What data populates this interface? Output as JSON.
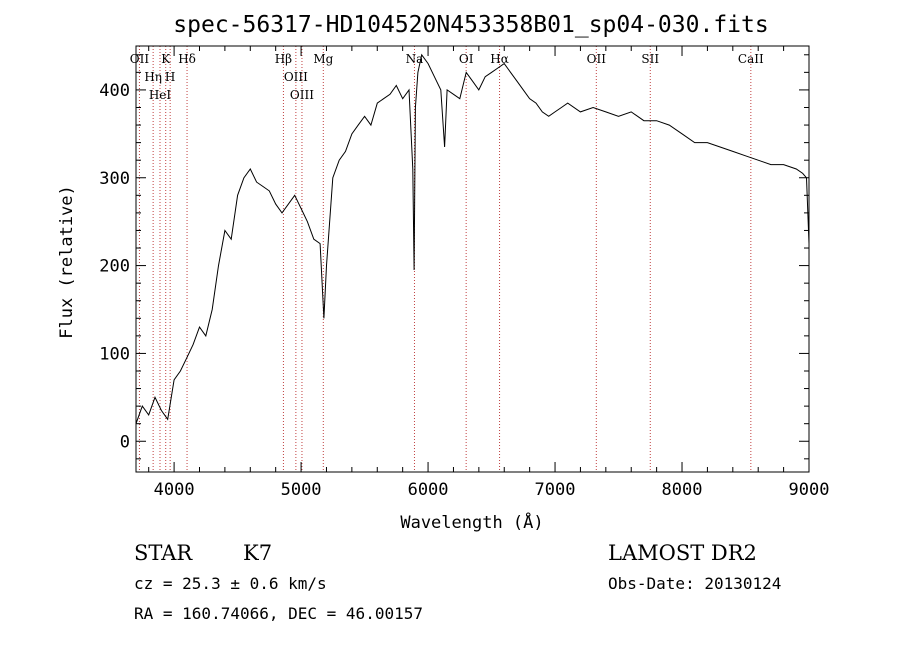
{
  "chart_data": {
    "type": "line",
    "title": "spec-56317-HD104520N453358B01_sp04-030.fits",
    "xlabel": "Wavelength (Å)",
    "ylabel": "Flux (relative)",
    "xlim": [
      3700,
      9000
    ],
    "ylim": [
      -35,
      450
    ],
    "xticks": [
      4000,
      5000,
      6000,
      7000,
      8000,
      9000
    ],
    "yticks": [
      0,
      100,
      200,
      300,
      400
    ],
    "grid": false,
    "series": [
      {
        "color": "#000000",
        "x": [
          3700,
          3750,
          3800,
          3850,
          3900,
          3950,
          4000,
          4050,
          4100,
          4150,
          4200,
          4250,
          4300,
          4350,
          4400,
          4450,
          4500,
          4550,
          4600,
          4650,
          4700,
          4750,
          4800,
          4850,
          4900,
          4950,
          5000,
          5050,
          5100,
          5150,
          5180,
          5200,
          5250,
          5300,
          5350,
          5400,
          5450,
          5500,
          5550,
          5600,
          5650,
          5700,
          5750,
          5800,
          5850,
          5880,
          5890,
          5900,
          5920,
          5950,
          6000,
          6050,
          6100,
          6130,
          6150,
          6200,
          6250,
          6300,
          6350,
          6400,
          6450,
          6500,
          6550,
          6600,
          6650,
          6700,
          6750,
          6800,
          6850,
          6900,
          6950,
          7000,
          7050,
          7100,
          7200,
          7300,
          7400,
          7500,
          7600,
          7700,
          7800,
          7900,
          8000,
          8100,
          8200,
          8300,
          8400,
          8500,
          8600,
          8700,
          8800,
          8900,
          8950,
          8980,
          9000
        ],
        "y": [
          20,
          40,
          30,
          50,
          35,
          25,
          70,
          80,
          95,
          110,
          130,
          120,
          150,
          200,
          240,
          230,
          280,
          300,
          310,
          295,
          290,
          285,
          270,
          260,
          270,
          280,
          265,
          250,
          230,
          225,
          140,
          200,
          300,
          320,
          330,
          350,
          360,
          370,
          360,
          385,
          390,
          395,
          405,
          390,
          400,
          310,
          195,
          380,
          420,
          440,
          430,
          415,
          400,
          335,
          400,
          395,
          390,
          420,
          410,
          400,
          415,
          420,
          425,
          430,
          420,
          410,
          400,
          390,
          385,
          375,
          370,
          375,
          380,
          385,
          375,
          380,
          375,
          370,
          375,
          365,
          365,
          360,
          350,
          340,
          340,
          335,
          330,
          325,
          320,
          315,
          315,
          310,
          305,
          300,
          225
        ]
      }
    ],
    "lines": [
      {
        "label": "OII",
        "wave": 3727
      },
      {
        "label": "Hη",
        "wave": 3835
      },
      {
        "label": "HeI",
        "wave": 3889
      },
      {
        "label": "K",
        "wave": 3934
      },
      {
        "label": "H",
        "wave": 3969
      },
      {
        "label": "Hδ",
        "wave": 4102
      },
      {
        "label": "Hβ",
        "wave": 4861
      },
      {
        "label": "OIII",
        "wave": 4959
      },
      {
        "label": "OIII",
        "wave": 5007
      },
      {
        "label": "Mg",
        "wave": 5175
      },
      {
        "label": "Na",
        "wave": 5893
      },
      {
        "label": "OI",
        "wave": 6300
      },
      {
        "label": "Hα",
        "wave": 6563
      },
      {
        "label": "OII",
        "wave": 7325
      },
      {
        "label": "SII",
        "wave": 7750
      },
      {
        "label": "CaII",
        "wave": 8542
      }
    ],
    "line_marker_color": "#c04040"
  },
  "info": {
    "object_class": "STAR",
    "subclass": "K7",
    "survey": "LAMOST DR2",
    "redshift": "cz = 25.3 ± 0.6 km/s",
    "obs_date": "Obs-Date: 20130124",
    "coords": "RA = 160.74066, DEC =  46.00157"
  }
}
